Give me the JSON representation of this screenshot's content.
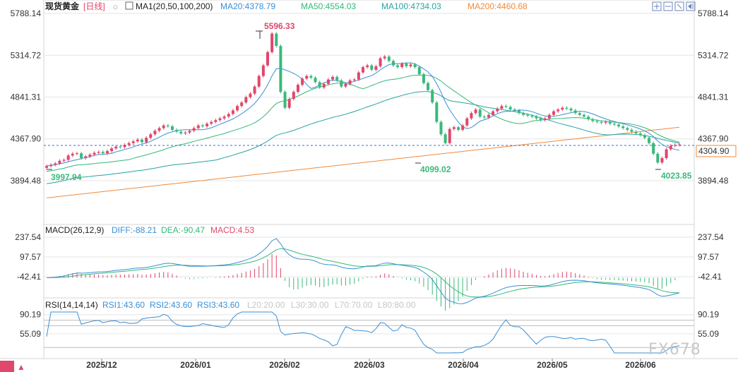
{
  "header": {
    "symbol": "现货黄金",
    "period": "[日线]",
    "ma_label": "MA1(20,50,100,200)",
    "ma20": "MA20:4378.79",
    "ma50": "MA50:4554.03",
    "ma100": "MA100:4734.03",
    "ma200": "MA200:4460.68"
  },
  "colors": {
    "up": "#e0476b",
    "down": "#3ab97a",
    "ma20": "#3a8fd6",
    "ma50": "#33b879",
    "ma100": "#27a3a3",
    "ma200": "#f08a3a",
    "grid": "#e6e6e6"
  },
  "toolbar_icons": [
    "zoom-in-icon",
    "zoom-out-icon",
    "fit-icon",
    "scroll-end-icon"
  ],
  "main_price_axis": [
    "5788.14",
    "5314.72",
    "4841.31",
    "4367.90",
    "3894.48"
  ],
  "last_price": "4304.90",
  "annotations": {
    "high": "5596.33",
    "low_dec": "3997.94",
    "low_mar": "4099.02",
    "low_jun": "4023.85"
  },
  "macd": {
    "label": "MACD(26,12,9)",
    "diff": "DIFF:-88.21",
    "dea": "DEA:-90.47",
    "macd": "MACD:4.53",
    "axis": [
      "237.54",
      "97.57",
      "-42.41"
    ]
  },
  "rsi": {
    "label": "RSI(14,14,14)",
    "rsi1": "RSI1:43.60",
    "rsi2": "RSI2:43.60",
    "rsi3": "RSI3:43.60",
    "l20": "L20:20.00",
    "l30": "L30:30.00",
    "l70": "L70:70.00",
    "l80": "L80:80.00",
    "axis": [
      "90.19",
      "55.09"
    ]
  },
  "watermark": "FX678",
  "chart_data": {
    "type": "candlestick",
    "x_ticks": [
      "2025/12",
      "2026/01",
      "2026/02",
      "2026/03",
      "2026/04",
      "2026/05",
      "2026/06"
    ],
    "price_range": [
      3700,
      5900
    ],
    "closes": [
      4060,
      4075,
      4090,
      4120,
      4130,
      4180,
      4200,
      4205,
      4150,
      4170,
      4190,
      4210,
      4220,
      4205,
      4230,
      4260,
      4280,
      4275,
      4300,
      4320,
      4340,
      4360,
      4330,
      4380,
      4420,
      4460,
      4490,
      4520,
      4510,
      4470,
      4450,
      4430,
      4440,
      4460,
      4490,
      4520,
      4510,
      4540,
      4560,
      4580,
      4600,
      4620,
      4650,
      4690,
      4740,
      4780,
      4840,
      4880,
      4960,
      5080,
      5200,
      5350,
      5560,
      5420,
      4900,
      4720,
      4820,
      4900,
      4980,
      5050,
      5080,
      5060,
      5010,
      4950,
      4990,
      5040,
      5070,
      5030,
      4960,
      4990,
      5030,
      5040,
      5120,
      5180,
      5200,
      5150,
      5190,
      5280,
      5300,
      5250,
      5200,
      5180,
      5220,
      5190,
      5210,
      5180,
      5100,
      5000,
      4920,
      4780,
      4560,
      4420,
      4320,
      4480,
      4500,
      4470,
      4520,
      4600,
      4660,
      4700,
      4620,
      4610,
      4640,
      4680,
      4710,
      4740,
      4730,
      4700,
      4690,
      4660,
      4640,
      4630,
      4620,
      4600,
      4580,
      4600,
      4640,
      4680,
      4700,
      4720,
      4710,
      4690,
      4660,
      4640,
      4620,
      4590,
      4570,
      4560,
      4550,
      4560,
      4540,
      4530,
      4510,
      4490,
      4470,
      4450,
      4430,
      4410,
      4380,
      4320,
      4200,
      4100,
      4150,
      4250,
      4290,
      4300,
      4305
    ],
    "high": 5596.33,
    "low_points": [
      3997.94,
      4099.02,
      4023.85
    ],
    "last": 4304.9,
    "ma": {
      "ma20": 4378.79,
      "ma50": 4554.03,
      "ma100": 4734.03,
      "ma200": 4460.68
    },
    "macd": {
      "diff": -88.21,
      "dea": -90.47,
      "macd": 4.53,
      "range": [
        -120,
        260
      ]
    },
    "rsi": {
      "rsi1": 43.6,
      "rsi2": 43.6,
      "rsi3": 43.6,
      "range": [
        20,
        95
      ]
    }
  }
}
